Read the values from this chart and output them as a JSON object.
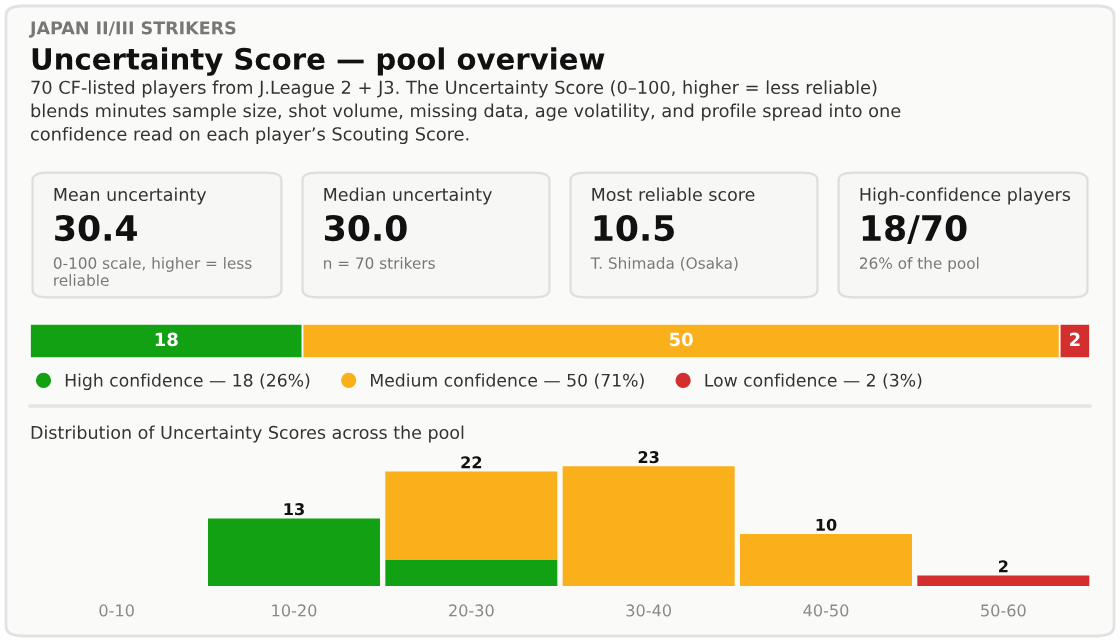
{
  "chart_data": [
    {
      "type": "other",
      "title": "Uncertainty Score — pool overview",
      "subtitle": "70 CF-listed players from J.League 2 + J3. The Uncertainty Score (0–100, higher = less reliable)\nblends minutes sample size, shot volume, missing data, age volatility, and profile spread into one\nconfidence read on each player’s Scouting Score.",
      "annotations": [
        "JAPAN II/III STRIKERS"
      ]
    },
    {
      "type": "other",
      "title": "Mean uncertainty",
      "annotations": [
        "30.4",
        "0-100 scale, higher = less\nreliable"
      ]
    },
    {
      "type": "other",
      "title": "Median uncertainty",
      "annotations": [
        "30.0",
        "n = 70 strikers"
      ]
    },
    {
      "type": "other",
      "title": "Most reliable score",
      "annotations": [
        "10.5",
        "T. Shimada (Osaka)"
      ]
    },
    {
      "type": "other",
      "title": "High-confidence players",
      "annotations": [
        "18/70",
        "26% of the pool"
      ]
    },
    {
      "type": "bar",
      "orientation": "horizontal",
      "stacked": true,
      "categories": [
        null
      ],
      "data_labels": true,
      "legend": "bottom",
      "tick_labels": false,
      "series": [
        {
          "name": "High confidence — 18 (26%)",
          "color": "#12a112",
          "values": [
            18
          ]
        },
        {
          "name": "Medium confidence — 50 (71%)",
          "color": "#f9b01b",
          "values": [
            50
          ]
        },
        {
          "name": "Low confidence — 2 (3%)",
          "color": "#d32f2f",
          "values": [
            2
          ]
        }
      ]
    },
    {
      "type": "bar",
      "stacked": true,
      "title": "Distribution of Uncertainty Scores across the pool",
      "categories": [
        "0-10",
        "10-20",
        "20-30",
        "30-40",
        "40-50",
        "50-60"
      ],
      "tick_labels": "x",
      "totals": [
        null,
        null,
        "22",
        null,
        null,
        null
      ],
      "series": [
        {
          "color": "#12a112",
          "values": [
            null,
            13,
            5,
            null,
            null,
            null
          ],
          "value_labels": [
            null,
            "13",
            null,
            null,
            null,
            null
          ]
        },
        {
          "color": "#f9b01b",
          "values": [
            null,
            null,
            17,
            23,
            10,
            null
          ],
          "value_labels": [
            null,
            null,
            null,
            "23",
            "10",
            null
          ]
        },
        {
          "color": "#d32f2f",
          "values": [
            null,
            null,
            null,
            null,
            null,
            2
          ],
          "value_labels": [
            null,
            null,
            null,
            null,
            null,
            "2"
          ]
        }
      ]
    }
  ]
}
